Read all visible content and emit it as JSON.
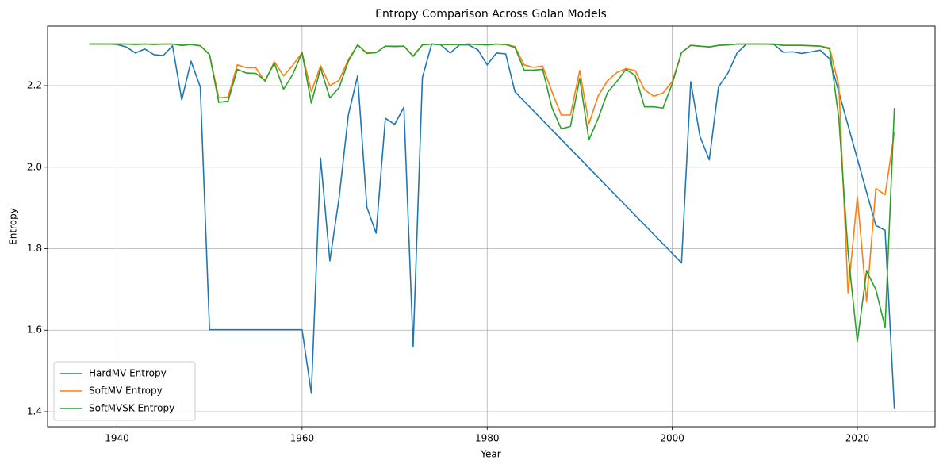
{
  "chart_data": {
    "type": "line",
    "title": "Entropy Comparison Across Golan Models",
    "xlabel": "Year",
    "ylabel": "Entropy",
    "xlim": [
      1932.5,
      2028.4
    ],
    "ylim": [
      1.363,
      2.346
    ],
    "xticks": [
      1940,
      1960,
      1980,
      2000,
      2020
    ],
    "yticks": [
      1.4,
      1.6,
      1.8,
      {
        "value": 2,
        "label": "2.0"
      },
      2.2
    ],
    "grid": true,
    "legend": "lower left",
    "series": [
      {
        "name": "HardMV Entropy",
        "color": "#1f77b4",
        "x": [
          1937,
          1938,
          1939,
          1940,
          1941,
          1942,
          1943,
          1944,
          1945,
          1946,
          1947,
          1948,
          1949,
          1950,
          1951,
          1952,
          1953,
          1954,
          1955,
          1956,
          1957,
          1958,
          1959,
          1960,
          1961,
          1962,
          1963,
          1964,
          1965,
          1966,
          1967,
          1968,
          1969,
          1970,
          1971,
          1972,
          1973,
          1974,
          1975,
          1976,
          1977,
          1978,
          1979,
          1980,
          1981,
          1982,
          1983,
          2001,
          2002,
          2003,
          2004,
          2005,
          2006,
          2007,
          2008,
          2009,
          2010,
          2011,
          2012,
          2013,
          2014,
          2015,
          2016,
          2017,
          2022,
          2023,
          2024
        ],
        "values": [
          2.302,
          2.302,
          2.302,
          2.301,
          2.295,
          2.28,
          2.29,
          2.276,
          2.274,
          2.298,
          2.165,
          2.26,
          2.197,
          1.601,
          1.601,
          1.601,
          1.601,
          1.601,
          1.601,
          1.601,
          1.601,
          1.601,
          1.601,
          1.601,
          1.445,
          2.022,
          1.77,
          1.925,
          2.128,
          2.224,
          1.902,
          1.838,
          2.12,
          2.105,
          2.147,
          1.56,
          2.22,
          2.302,
          2.3,
          2.28,
          2.3,
          2.3,
          2.288,
          2.251,
          2.28,
          2.278,
          2.185,
          1.765,
          2.21,
          2.075,
          2.018,
          2.197,
          2.23,
          2.28,
          2.302,
          2.302,
          2.302,
          2.301,
          2.282,
          2.283,
          2.279,
          2.283,
          2.287,
          2.266,
          1.857,
          1.845,
          1.408
        ]
      },
      {
        "name": "SoftMV Entropy",
        "color": "#ff7f0e",
        "x": [
          1937,
          1938,
          1939,
          1940,
          1941,
          1942,
          1943,
          1944,
          1945,
          1946,
          1947,
          1948,
          1949,
          1950,
          1951,
          1952,
          1953,
          1954,
          1955,
          1956,
          1957,
          1958,
          1959,
          1960,
          1961,
          1962,
          1963,
          1964,
          1965,
          1966,
          1967,
          1968,
          1969,
          1970,
          1971,
          1972,
          1973,
          1974,
          1975,
          1976,
          1977,
          1978,
          1979,
          1980,
          1981,
          1982,
          1983,
          1984,
          1985,
          1986,
          1987,
          1988,
          1989,
          1990,
          1991,
          1992,
          1993,
          1994,
          1995,
          1996,
          1997,
          1998,
          1999,
          2000,
          2001,
          2002,
          2003,
          2004,
          2005,
          2006,
          2007,
          2008,
          2009,
          2010,
          2011,
          2012,
          2013,
          2014,
          2015,
          2016,
          2017,
          2018,
          2019,
          2020,
          2021,
          2022,
          2023,
          2024
        ],
        "values": [
          2.302,
          2.302,
          2.302,
          2.302,
          2.302,
          2.302,
          2.302,
          2.302,
          2.302,
          2.302,
          2.299,
          2.301,
          2.298,
          2.277,
          2.17,
          2.172,
          2.251,
          2.244,
          2.244,
          2.21,
          2.259,
          2.224,
          2.25,
          2.281,
          2.185,
          2.249,
          2.2,
          2.213,
          2.264,
          2.3,
          2.28,
          2.281,
          2.297,
          2.297,
          2.297,
          2.273,
          2.3,
          2.302,
          2.301,
          2.301,
          2.301,
          2.302,
          2.301,
          2.3,
          2.302,
          2.301,
          2.296,
          2.251,
          2.245,
          2.248,
          2.185,
          2.128,
          2.128,
          2.237,
          2.107,
          2.175,
          2.212,
          2.232,
          2.242,
          2.237,
          2.19,
          2.174,
          2.182,
          2.21,
          2.281,
          2.299,
          2.297,
          2.295,
          2.299,
          2.3,
          2.302,
          2.302,
          2.302,
          2.302,
          2.302,
          2.299,
          2.299,
          2.299,
          2.298,
          2.297,
          2.293,
          2.2,
          1.69,
          1.928,
          1.67,
          1.948,
          1.932,
          2.085
        ]
      },
      {
        "name": "SoftMVSK Entropy",
        "color": "#2ca02c",
        "x": [
          1937,
          1938,
          1939,
          1940,
          1941,
          1942,
          1943,
          1944,
          1945,
          1946,
          1947,
          1948,
          1949,
          1950,
          1951,
          1952,
          1953,
          1954,
          1955,
          1956,
          1957,
          1958,
          1959,
          1960,
          1961,
          1962,
          1963,
          1964,
          1965,
          1966,
          1967,
          1968,
          1969,
          1970,
          1971,
          1972,
          1973,
          1974,
          1975,
          1976,
          1977,
          1978,
          1979,
          1980,
          1981,
          1982,
          1983,
          1984,
          1985,
          1986,
          1987,
          1988,
          1989,
          1990,
          1991,
          1992,
          1993,
          1994,
          1995,
          1996,
          1997,
          1998,
          1999,
          2000,
          2001,
          2002,
          2003,
          2004,
          2005,
          2006,
          2007,
          2008,
          2009,
          2010,
          2011,
          2012,
          2013,
          2014,
          2015,
          2016,
          2017,
          2018,
          2019,
          2020,
          2021,
          2022,
          2023,
          2024
        ],
        "values": [
          2.302,
          2.302,
          2.302,
          2.302,
          2.302,
          2.301,
          2.302,
          2.301,
          2.302,
          2.302,
          2.299,
          2.301,
          2.298,
          2.276,
          2.159,
          2.162,
          2.24,
          2.231,
          2.23,
          2.213,
          2.255,
          2.191,
          2.228,
          2.281,
          2.157,
          2.243,
          2.17,
          2.195,
          2.26,
          2.3,
          2.279,
          2.281,
          2.297,
          2.296,
          2.297,
          2.272,
          2.3,
          2.302,
          2.301,
          2.301,
          2.301,
          2.302,
          2.301,
          2.3,
          2.302,
          2.301,
          2.294,
          2.238,
          2.238,
          2.24,
          2.146,
          2.094,
          2.1,
          2.218,
          2.067,
          2.12,
          2.183,
          2.21,
          2.24,
          2.225,
          2.148,
          2.148,
          2.145,
          2.205,
          2.281,
          2.299,
          2.297,
          2.295,
          2.299,
          2.3,
          2.302,
          2.302,
          2.302,
          2.302,
          2.302,
          2.299,
          2.299,
          2.299,
          2.298,
          2.297,
          2.29,
          2.12,
          1.79,
          1.572,
          1.745,
          1.7,
          1.607,
          2.145
        ]
      }
    ]
  }
}
